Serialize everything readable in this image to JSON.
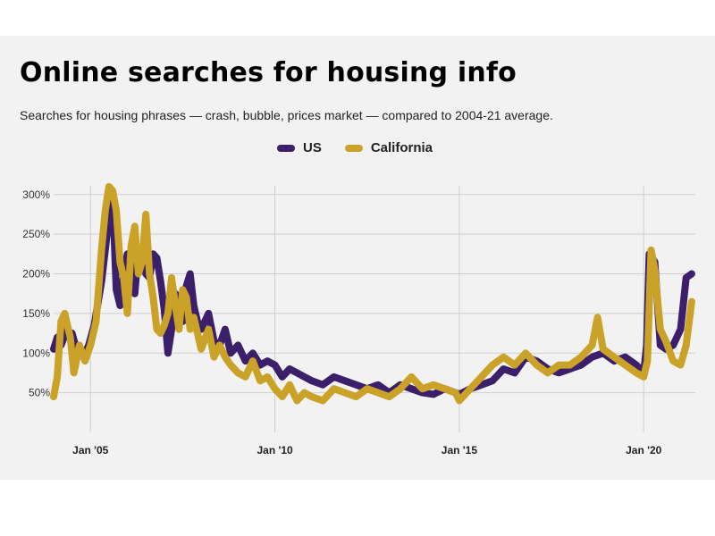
{
  "title": "Online searches for housing info",
  "subtitle": "Searches for housing phrases — crash, bubble, prices market — compared to 2004-21 average.",
  "colors": {
    "us": "#3b1f6b",
    "california": "#c9a227",
    "grid": "#cfcfcf",
    "background": "#f2f2f2"
  },
  "chart_data": {
    "type": "line",
    "title": "Online searches for housing info",
    "subtitle": "Searches for housing phrases — crash, bubble, prices market — compared to 2004-21 average.",
    "xlabel": "",
    "ylabel": "",
    "x_range": [
      2004.0,
      2021.4
    ],
    "ylim": [
      0,
      320
    ],
    "y_ticks": [
      50,
      100,
      150,
      200,
      250,
      300
    ],
    "y_tick_labels": [
      "50%",
      "100%",
      "150%",
      "200%",
      "250%",
      "300%"
    ],
    "x_ticks": [
      2005,
      2010,
      2015,
      2020
    ],
    "x_tick_labels": [
      "Jan '05",
      "Jan '10",
      "Jan '15",
      "Jan '20"
    ],
    "grid": true,
    "legend_position": "top-center",
    "series": [
      {
        "name": "US",
        "points": [
          [
            2004.0,
            105
          ],
          [
            2004.1,
            120
          ],
          [
            2004.2,
            110
          ],
          [
            2004.35,
            128
          ],
          [
            2004.5,
            125
          ],
          [
            2004.65,
            100
          ],
          [
            2004.8,
            95
          ],
          [
            2004.95,
            110
          ],
          [
            2005.1,
            135
          ],
          [
            2005.3,
            190
          ],
          [
            2005.45,
            250
          ],
          [
            2005.55,
            290
          ],
          [
            2005.62,
            275
          ],
          [
            2005.7,
            180
          ],
          [
            2005.8,
            160
          ],
          [
            2005.9,
            200
          ],
          [
            2006.0,
            225
          ],
          [
            2006.1,
            190
          ],
          [
            2006.2,
            175
          ],
          [
            2006.3,
            230
          ],
          [
            2006.4,
            220
          ],
          [
            2006.5,
            200
          ],
          [
            2006.6,
            195
          ],
          [
            2006.7,
            225
          ],
          [
            2006.8,
            220
          ],
          [
            2006.9,
            190
          ],
          [
            2007.0,
            155
          ],
          [
            2007.1,
            100
          ],
          [
            2007.2,
            130
          ],
          [
            2007.3,
            175
          ],
          [
            2007.4,
            160
          ],
          [
            2007.5,
            140
          ],
          [
            2007.6,
            185
          ],
          [
            2007.7,
            200
          ],
          [
            2007.8,
            160
          ],
          [
            2007.9,
            140
          ],
          [
            2008.0,
            130
          ],
          [
            2008.2,
            150
          ],
          [
            2008.35,
            115
          ],
          [
            2008.5,
            110
          ],
          [
            2008.65,
            130
          ],
          [
            2008.8,
            100
          ],
          [
            2009.0,
            110
          ],
          [
            2009.2,
            90
          ],
          [
            2009.4,
            100
          ],
          [
            2009.6,
            85
          ],
          [
            2009.8,
            90
          ],
          [
            2010.0,
            85
          ],
          [
            2010.2,
            70
          ],
          [
            2010.4,
            80
          ],
          [
            2010.6,
            75
          ],
          [
            2010.8,
            70
          ],
          [
            2011.0,
            65
          ],
          [
            2011.3,
            60
          ],
          [
            2011.6,
            70
          ],
          [
            2011.9,
            65
          ],
          [
            2012.2,
            60
          ],
          [
            2012.5,
            55
          ],
          [
            2012.8,
            60
          ],
          [
            2013.1,
            50
          ],
          [
            2013.4,
            60
          ],
          [
            2013.7,
            55
          ],
          [
            2014.0,
            50
          ],
          [
            2014.3,
            48
          ],
          [
            2014.6,
            55
          ],
          [
            2014.9,
            50
          ],
          [
            2015.0,
            48
          ],
          [
            2015.3,
            55
          ],
          [
            2015.6,
            60
          ],
          [
            2015.9,
            65
          ],
          [
            2016.2,
            80
          ],
          [
            2016.5,
            75
          ],
          [
            2016.8,
            95
          ],
          [
            2017.1,
            90
          ],
          [
            2017.4,
            80
          ],
          [
            2017.7,
            75
          ],
          [
            2018.0,
            80
          ],
          [
            2018.3,
            85
          ],
          [
            2018.6,
            95
          ],
          [
            2018.9,
            100
          ],
          [
            2019.2,
            90
          ],
          [
            2019.5,
            95
          ],
          [
            2019.8,
            85
          ],
          [
            2020.0,
            75
          ],
          [
            2020.08,
            110
          ],
          [
            2020.15,
            225
          ],
          [
            2020.3,
            215
          ],
          [
            2020.45,
            110
          ],
          [
            2020.6,
            105
          ],
          [
            2020.8,
            110
          ],
          [
            2021.0,
            130
          ],
          [
            2021.15,
            195
          ],
          [
            2021.3,
            200
          ]
        ]
      },
      {
        "name": "California",
        "points": [
          [
            2004.0,
            45
          ],
          [
            2004.1,
            70
          ],
          [
            2004.2,
            140
          ],
          [
            2004.3,
            150
          ],
          [
            2004.45,
            120
          ],
          [
            2004.55,
            75
          ],
          [
            2004.7,
            110
          ],
          [
            2004.85,
            90
          ],
          [
            2005.0,
            110
          ],
          [
            2005.15,
            140
          ],
          [
            2005.3,
            230
          ],
          [
            2005.4,
            280
          ],
          [
            2005.5,
            310
          ],
          [
            2005.6,
            305
          ],
          [
            2005.7,
            280
          ],
          [
            2005.8,
            215
          ],
          [
            2005.9,
            195
          ],
          [
            2006.0,
            150
          ],
          [
            2006.1,
            235
          ],
          [
            2006.2,
            260
          ],
          [
            2006.3,
            200
          ],
          [
            2006.4,
            215
          ],
          [
            2006.5,
            275
          ],
          [
            2006.6,
            200
          ],
          [
            2006.7,
            170
          ],
          [
            2006.8,
            130
          ],
          [
            2006.9,
            125
          ],
          [
            2007.0,
            135
          ],
          [
            2007.1,
            150
          ],
          [
            2007.2,
            195
          ],
          [
            2007.3,
            160
          ],
          [
            2007.4,
            130
          ],
          [
            2007.5,
            180
          ],
          [
            2007.6,
            170
          ],
          [
            2007.7,
            130
          ],
          [
            2007.8,
            145
          ],
          [
            2008.0,
            105
          ],
          [
            2008.2,
            130
          ],
          [
            2008.35,
            95
          ],
          [
            2008.5,
            110
          ],
          [
            2008.65,
            95
          ],
          [
            2008.8,
            85
          ],
          [
            2009.0,
            75
          ],
          [
            2009.2,
            70
          ],
          [
            2009.4,
            90
          ],
          [
            2009.6,
            65
          ],
          [
            2009.8,
            70
          ],
          [
            2010.0,
            55
          ],
          [
            2010.2,
            45
          ],
          [
            2010.4,
            60
          ],
          [
            2010.6,
            40
          ],
          [
            2010.8,
            50
          ],
          [
            2011.0,
            45
          ],
          [
            2011.3,
            40
          ],
          [
            2011.6,
            55
          ],
          [
            2011.9,
            50
          ],
          [
            2012.2,
            45
          ],
          [
            2012.5,
            55
          ],
          [
            2012.8,
            50
          ],
          [
            2013.1,
            45
          ],
          [
            2013.4,
            55
          ],
          [
            2013.7,
            70
          ],
          [
            2014.0,
            55
          ],
          [
            2014.3,
            60
          ],
          [
            2014.6,
            55
          ],
          [
            2014.9,
            50
          ],
          [
            2015.0,
            40
          ],
          [
            2015.3,
            55
          ],
          [
            2015.6,
            70
          ],
          [
            2015.9,
            85
          ],
          [
            2016.2,
            95
          ],
          [
            2016.5,
            85
          ],
          [
            2016.8,
            100
          ],
          [
            2017.1,
            85
          ],
          [
            2017.4,
            75
          ],
          [
            2017.7,
            85
          ],
          [
            2018.0,
            85
          ],
          [
            2018.3,
            95
          ],
          [
            2018.6,
            110
          ],
          [
            2018.75,
            145
          ],
          [
            2018.9,
            105
          ],
          [
            2019.2,
            95
          ],
          [
            2019.5,
            85
          ],
          [
            2019.8,
            75
          ],
          [
            2020.0,
            70
          ],
          [
            2020.1,
            90
          ],
          [
            2020.2,
            230
          ],
          [
            2020.3,
            205
          ],
          [
            2020.45,
            130
          ],
          [
            2020.6,
            115
          ],
          [
            2020.8,
            90
          ],
          [
            2021.0,
            85
          ],
          [
            2021.15,
            110
          ],
          [
            2021.3,
            165
          ]
        ]
      }
    ]
  }
}
